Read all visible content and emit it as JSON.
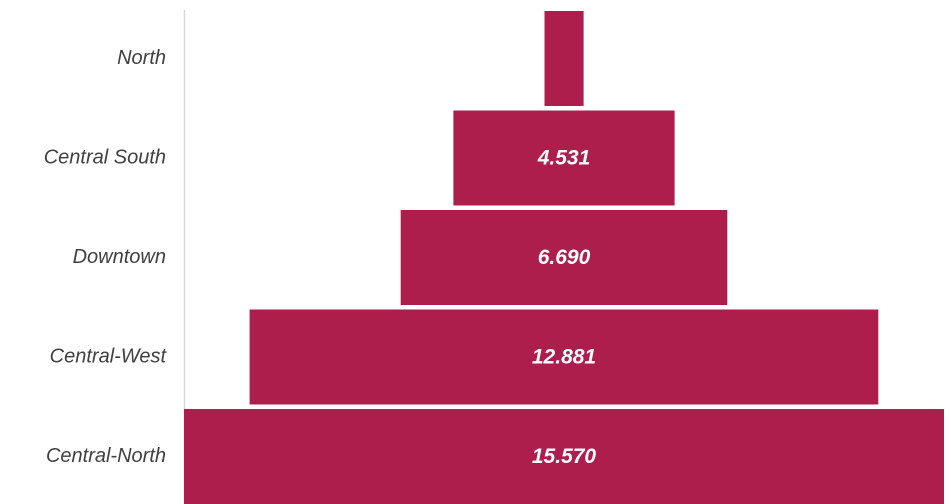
{
  "chart_data": {
    "type": "bar",
    "subtype": "funnel",
    "categories": [
      "North",
      "Central South",
      "Downtown",
      "Central-West",
      "Central-North"
    ],
    "values": [
      0.801,
      4.531,
      6.69,
      12.881,
      15.57
    ],
    "value_labels": [
      "",
      "4.531",
      "6.690",
      "12.881",
      "15.570"
    ],
    "title": "",
    "xlabel": "",
    "ylabel": "",
    "grid": false,
    "legend": "none",
    "bar_color": "#AD1E4D",
    "axis_color": "#D9D9D9",
    "label_color": "#404040"
  }
}
